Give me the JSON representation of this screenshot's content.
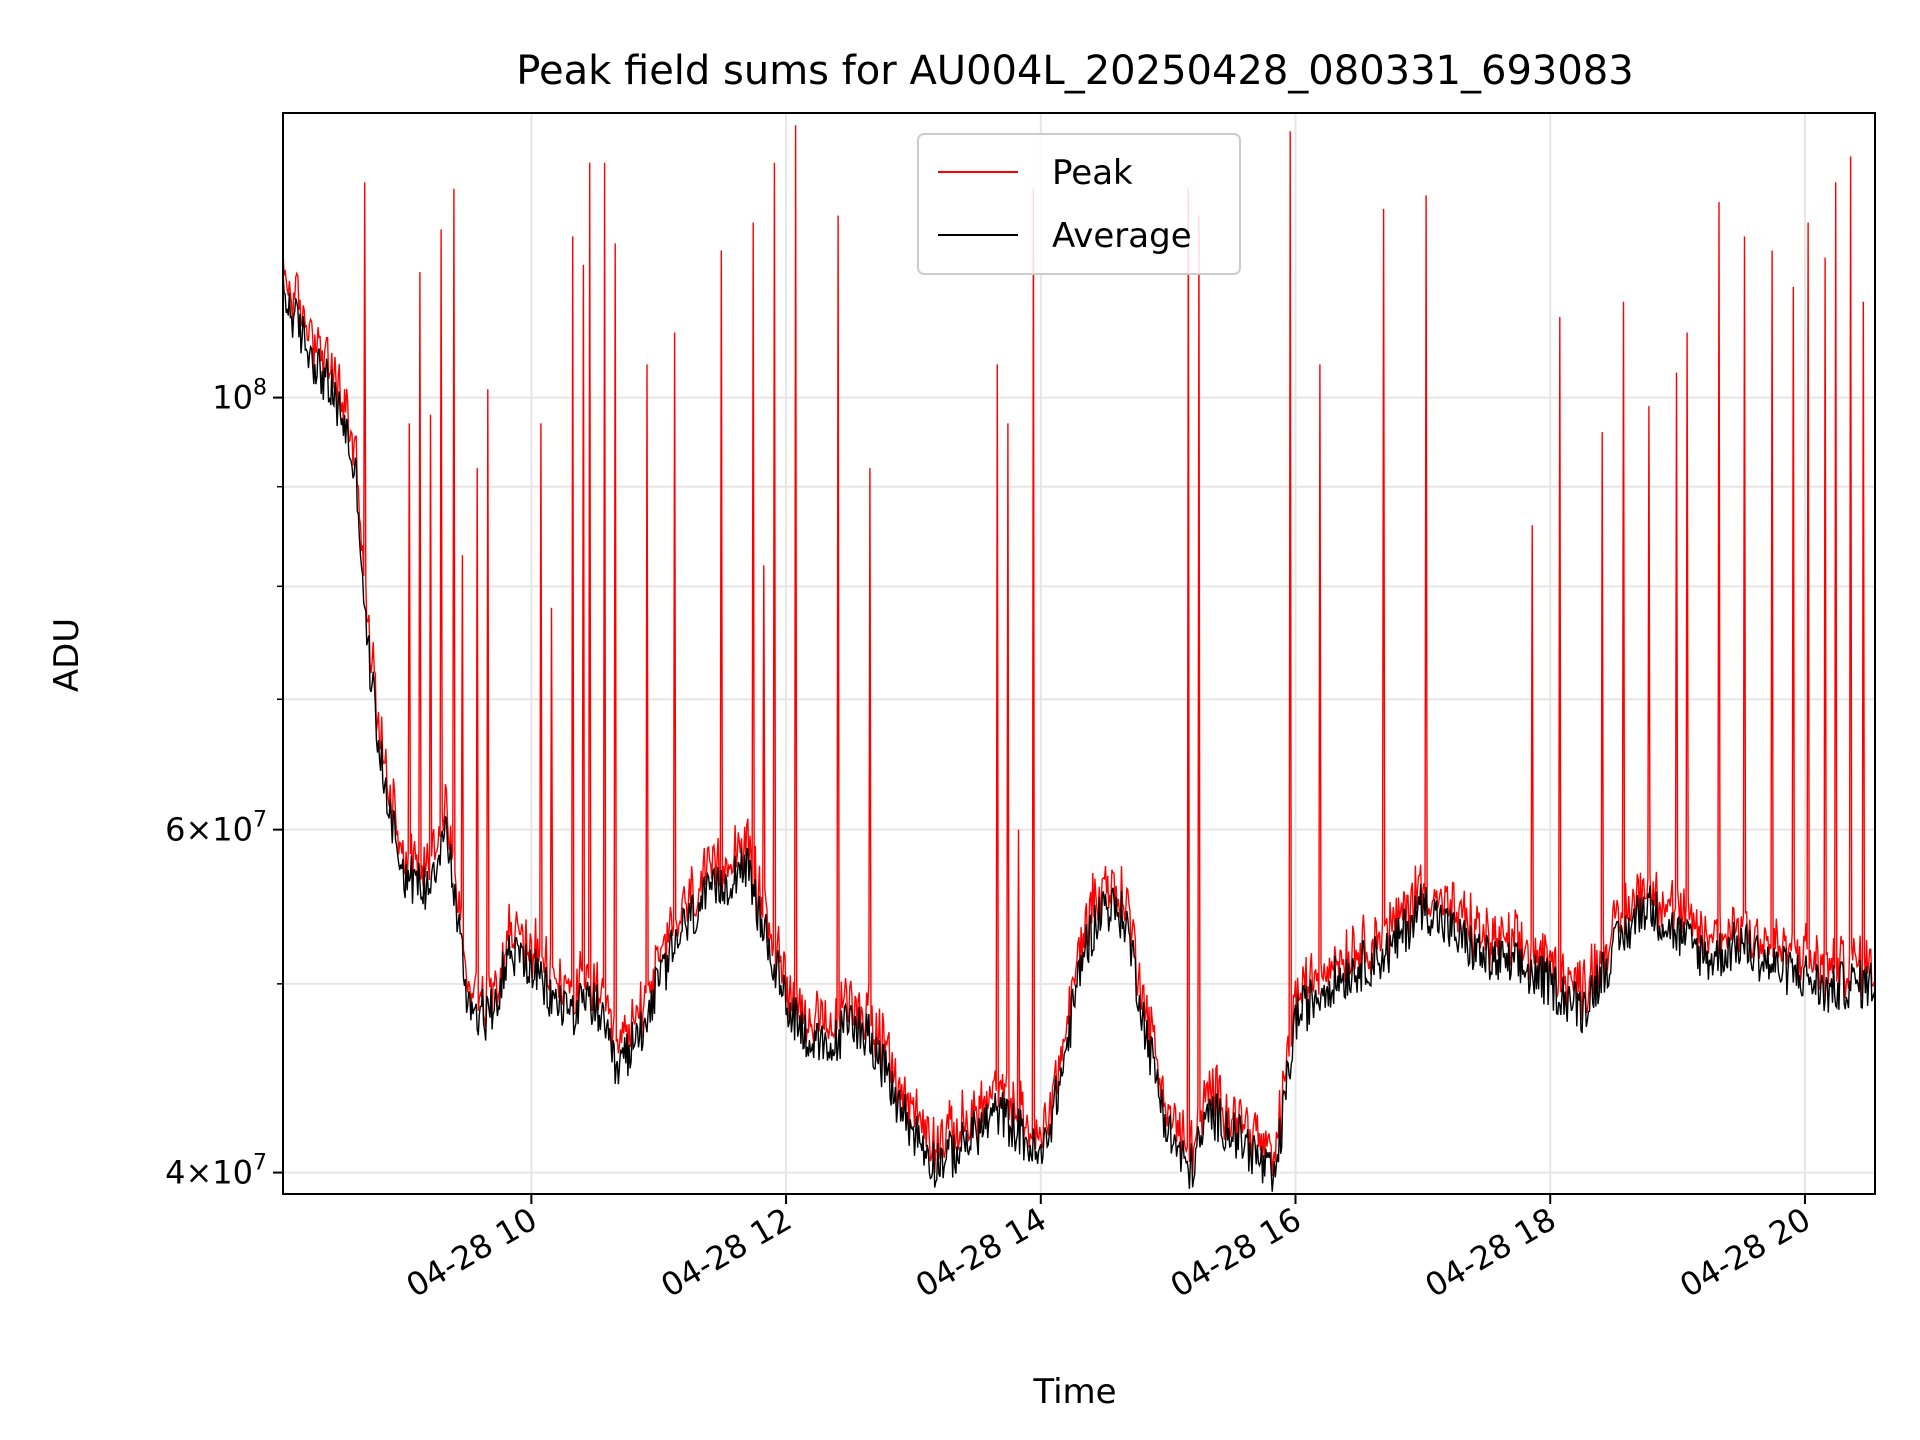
{
  "chart_data": {
    "type": "line",
    "title": "Peak field sums for AU004L_20250428_080331_693083",
    "xlabel": "Time",
    "ylabel": "ADU",
    "yscale": "log",
    "ylim": [
      39000000,
      140000000
    ],
    "xlim": [
      "04-28 08:03",
      "04-28 20:33"
    ],
    "grid": true,
    "legend_position": "upper center",
    "x_ticks": [
      "04-28 10",
      "04-28 12",
      "04-28 14",
      "04-28 16",
      "04-28 18",
      "04-28 20"
    ],
    "y_ticks_major": [
      {
        "value": 40000000,
        "mantissa": "4",
        "exponent": "7"
      },
      {
        "value": 60000000,
        "mantissa": "6",
        "exponent": "7"
      },
      {
        "value": 100000000,
        "mantissa": "",
        "exponent": "8"
      }
    ],
    "y_ticks_minor": [
      50000000,
      70000000,
      80000000,
      90000000
    ],
    "series": [
      {
        "name": "Peak",
        "color": "#ff0000",
        "role": "peak"
      },
      {
        "name": "Average",
        "color": "#000000",
        "role": "average"
      }
    ],
    "average_points": [
      [
        "04-28 08:03",
        113000000
      ],
      [
        "04-28 08:15",
        106000000
      ],
      [
        "04-28 08:25",
        101000000
      ],
      [
        "04-28 08:32",
        97000000
      ],
      [
        "04-28 08:38",
        90000000
      ],
      [
        "04-28 08:42",
        76000000
      ],
      [
        "04-28 08:50",
        64000000
      ],
      [
        "04-28 09:00",
        57000000
      ],
      [
        "04-28 09:10",
        56000000
      ],
      [
        "04-28 09:20",
        60000000
      ],
      [
        "04-28 09:30",
        49000000
      ],
      [
        "04-28 09:40",
        48000000
      ],
      [
        "04-28 09:50",
        52000000
      ],
      [
        "04-28 10:00",
        51000000
      ],
      [
        "04-28 10:10",
        49000000
      ],
      [
        "04-28 10:20",
        48500000
      ],
      [
        "04-28 10:30",
        49000000
      ],
      [
        "04-28 10:40",
        45000000
      ],
      [
        "04-28 10:50",
        47000000
      ],
      [
        "04-28 11:00",
        50000000
      ],
      [
        "04-28 11:10",
        53000000
      ],
      [
        "04-28 11:20",
        55000000
      ],
      [
        "04-28 11:30",
        56000000
      ],
      [
        "04-28 11:40",
        58000000
      ],
      [
        "04-28 11:50",
        53000000
      ],
      [
        "04-28 12:00",
        49000000
      ],
      [
        "04-28 12:10",
        47000000
      ],
      [
        "04-28 12:20",
        46000000
      ],
      [
        "04-28 12:30",
        48000000
      ],
      [
        "04-28 12:40",
        47000000
      ],
      [
        "04-28 12:50",
        44000000
      ],
      [
        "04-28 13:00",
        42000000
      ],
      [
        "04-28 13:10",
        40500000
      ],
      [
        "04-28 13:20",
        41000000
      ],
      [
        "04-28 13:30",
        42000000
      ],
      [
        "04-28 13:40",
        43000000
      ],
      [
        "04-28 13:50",
        42000000
      ],
      [
        "04-28 14:00",
        40500000
      ],
      [
        "04-28 14:10",
        45000000
      ],
      [
        "04-28 14:20",
        52000000
      ],
      [
        "04-28 14:30",
        55000000
      ],
      [
        "04-28 14:40",
        54000000
      ],
      [
        "04-28 14:50",
        47000000
      ],
      [
        "04-28 15:00",
        42000000
      ],
      [
        "04-28 15:10",
        40000000
      ],
      [
        "04-28 15:20",
        43000000
      ],
      [
        "04-28 15:30",
        42000000
      ],
      [
        "04-28 15:40",
        41000000
      ],
      [
        "04-28 15:50",
        39500000
      ],
      [
        "04-28 16:00",
        48000000
      ],
      [
        "04-28 16:15",
        50000000
      ],
      [
        "04-28 16:30",
        51000000
      ],
      [
        "04-28 16:45",
        52000000
      ],
      [
        "04-28 17:00",
        55000000
      ],
      [
        "04-28 17:15",
        53000000
      ],
      [
        "04-28 17:30",
        51500000
      ],
      [
        "04-28 17:45",
        51000000
      ],
      [
        "04-28 18:00",
        50000000
      ],
      [
        "04-28 18:15",
        48500000
      ],
      [
        "04-28 18:30",
        52000000
      ],
      [
        "04-28 18:45",
        55000000
      ],
      [
        "04-28 19:00",
        53000000
      ],
      [
        "04-28 19:15",
        51500000
      ],
      [
        "04-28 19:30",
        52500000
      ],
      [
        "04-28 19:45",
        51000000
      ],
      [
        "04-28 20:00",
        50500000
      ],
      [
        "04-28 20:10",
        49500000
      ],
      [
        "04-28 20:20",
        50000000
      ],
      [
        "04-28 20:30",
        50000000
      ]
    ],
    "peak_spikes": [
      [
        "04-28 08:42",
        129000000
      ],
      [
        "04-28 09:03",
        97000000
      ],
      [
        "04-28 09:08",
        116000000
      ],
      [
        "04-28 09:13",
        98000000
      ],
      [
        "04-28 09:18",
        122000000
      ],
      [
        "04-28 09:24",
        128000000
      ],
      [
        "04-28 09:28",
        83000000
      ],
      [
        "04-28 09:35",
        92000000
      ],
      [
        "04-28 09:40",
        101000000
      ],
      [
        "04-28 10:05",
        97000000
      ],
      [
        "04-28 10:10",
        78000000
      ],
      [
        "04-28 10:20",
        121000000
      ],
      [
        "04-28 10:25",
        117000000
      ],
      [
        "04-28 10:28",
        132000000
      ],
      [
        "04-28 10:35",
        132000000
      ],
      [
        "04-28 10:40",
        120000000
      ],
      [
        "04-28 10:55",
        104000000
      ],
      [
        "04-28 11:08",
        108000000
      ],
      [
        "04-28 11:30",
        119000000
      ],
      [
        "04-28 11:45",
        123000000
      ],
      [
        "04-28 11:50",
        82000000
      ],
      [
        "04-28 11:55",
        132000000
      ],
      [
        "04-28 12:05",
        138000000
      ],
      [
        "04-28 12:25",
        124000000
      ],
      [
        "04-28 12:40",
        92000000
      ],
      [
        "04-28 13:40",
        104000000
      ],
      [
        "04-28 13:45",
        97000000
      ],
      [
        "04-28 13:50",
        60000000
      ],
      [
        "04-28 13:57",
        128000000
      ],
      [
        "04-28 14:25",
        57000000
      ],
      [
        "04-28 15:10",
        128000000
      ],
      [
        "04-28 15:15",
        124000000
      ],
      [
        "04-28 15:58",
        137000000
      ],
      [
        "04-28 16:12",
        104000000
      ],
      [
        "04-28 16:42",
        125000000
      ],
      [
        "04-28 17:02",
        127000000
      ],
      [
        "04-28 17:52",
        86000000
      ],
      [
        "04-28 18:05",
        110000000
      ],
      [
        "04-28 18:25",
        96000000
      ],
      [
        "04-28 18:35",
        112000000
      ],
      [
        "04-28 18:47",
        99000000
      ],
      [
        "04-28 19:00",
        103000000
      ],
      [
        "04-28 19:05",
        108000000
      ],
      [
        "04-28 19:20",
        126000000
      ],
      [
        "04-28 19:32",
        121000000
      ],
      [
        "04-28 19:45",
        119000000
      ],
      [
        "04-28 19:55",
        114000000
      ],
      [
        "04-28 20:02",
        123000000
      ],
      [
        "04-28 20:10",
        118000000
      ],
      [
        "04-28 20:15",
        129000000
      ],
      [
        "04-28 20:22",
        133000000
      ],
      [
        "04-28 20:28",
        112000000
      ]
    ]
  }
}
